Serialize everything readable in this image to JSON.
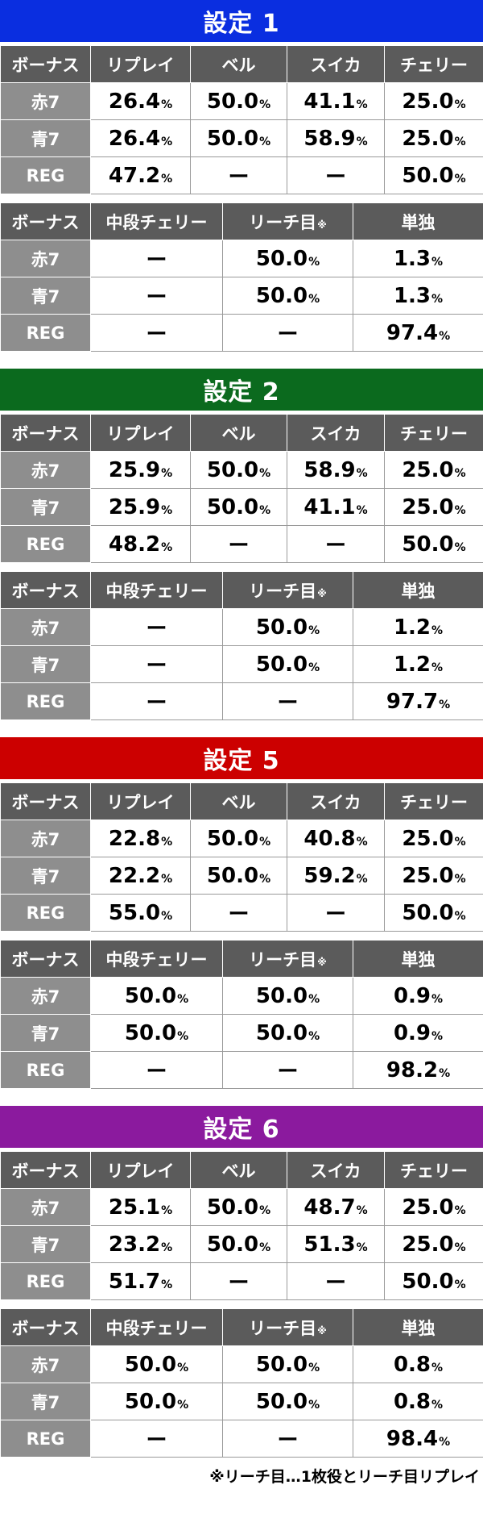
{
  "sections": [
    {
      "title": "設定 1",
      "color": "#0a2ee0",
      "table1": {
        "header": [
          "ボーナス",
          "リプレイ",
          "ベル",
          "スイカ",
          "チェリー"
        ],
        "rows": [
          [
            "赤7",
            "26.4%",
            "50.0%",
            "41.1%",
            "25.0%"
          ],
          [
            "青7",
            "26.4%",
            "50.0%",
            "58.9%",
            "25.0%"
          ],
          [
            "REG",
            "47.2%",
            "ー",
            "ー",
            "50.0%"
          ]
        ]
      },
      "table2": {
        "header": [
          "ボーナス",
          "中段チェリー",
          "リーチ目※",
          "単独"
        ],
        "rows": [
          [
            "赤7",
            "ー",
            "50.0%",
            "1.3%"
          ],
          [
            "青7",
            "ー",
            "50.0%",
            "1.3%"
          ],
          [
            "REG",
            "ー",
            "ー",
            "97.4%"
          ]
        ]
      }
    },
    {
      "title": "設定 2",
      "color": "#0b6a1e",
      "table1": {
        "header": [
          "ボーナス",
          "リプレイ",
          "ベル",
          "スイカ",
          "チェリー"
        ],
        "rows": [
          [
            "赤7",
            "25.9%",
            "50.0%",
            "58.9%",
            "25.0%"
          ],
          [
            "青7",
            "25.9%",
            "50.0%",
            "41.1%",
            "25.0%"
          ],
          [
            "REG",
            "48.2%",
            "ー",
            "ー",
            "50.0%"
          ]
        ]
      },
      "table2": {
        "header": [
          "ボーナス",
          "中段チェリー",
          "リーチ目※",
          "単独"
        ],
        "rows": [
          [
            "赤7",
            "ー",
            "50.0%",
            "1.2%"
          ],
          [
            "青7",
            "ー",
            "50.0%",
            "1.2%"
          ],
          [
            "REG",
            "ー",
            "ー",
            "97.7%"
          ]
        ]
      }
    },
    {
      "title": "設定 5",
      "color": "#cc0000",
      "table1": {
        "header": [
          "ボーナス",
          "リプレイ",
          "ベル",
          "スイカ",
          "チェリー"
        ],
        "rows": [
          [
            "赤7",
            "22.8%",
            "50.0%",
            "40.8%",
            "25.0%"
          ],
          [
            "青7",
            "22.2%",
            "50.0%",
            "59.2%",
            "25.0%"
          ],
          [
            "REG",
            "55.0%",
            "ー",
            "ー",
            "50.0%"
          ]
        ]
      },
      "table2": {
        "header": [
          "ボーナス",
          "中段チェリー",
          "リーチ目※",
          "単独"
        ],
        "rows": [
          [
            "赤7",
            "50.0%",
            "50.0%",
            "0.9%"
          ],
          [
            "青7",
            "50.0%",
            "50.0%",
            "0.9%"
          ],
          [
            "REG",
            "ー",
            "ー",
            "98.2%"
          ]
        ]
      }
    },
    {
      "title": "設定 6",
      "color": "#8b1a9e",
      "table1": {
        "header": [
          "ボーナス",
          "リプレイ",
          "ベル",
          "スイカ",
          "チェリー"
        ],
        "rows": [
          [
            "赤7",
            "25.1%",
            "50.0%",
            "48.7%",
            "25.0%"
          ],
          [
            "青7",
            "23.2%",
            "50.0%",
            "51.3%",
            "25.0%"
          ],
          [
            "REG",
            "51.7%",
            "ー",
            "ー",
            "50.0%"
          ]
        ]
      },
      "table2": {
        "header": [
          "ボーナス",
          "中段チェリー",
          "リーチ目※",
          "単独"
        ],
        "rows": [
          [
            "赤7",
            "50.0%",
            "50.0%",
            "0.8%"
          ],
          [
            "青7",
            "50.0%",
            "50.0%",
            "0.8%"
          ],
          [
            "REG",
            "ー",
            "ー",
            "98.4%"
          ]
        ]
      }
    }
  ],
  "footnote": "※リーチ目…1枚役とリーチ目リプレイ"
}
